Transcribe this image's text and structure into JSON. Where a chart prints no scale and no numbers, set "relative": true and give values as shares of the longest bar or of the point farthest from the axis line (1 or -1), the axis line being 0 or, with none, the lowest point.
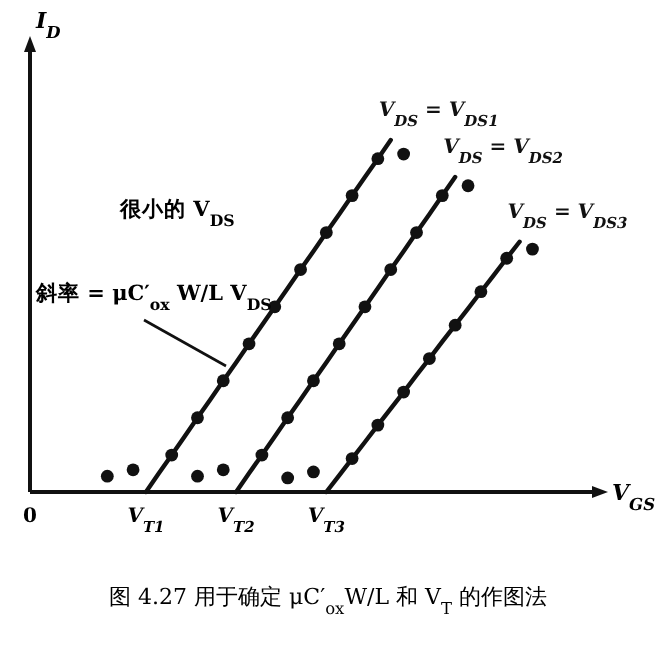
{
  "chart_data": {
    "type": "line",
    "relative": true,
    "xlabel": "V$_{GS}$",
    "ylabel": "I$_{D}$",
    "categories": [
      "0",
      null,
      null,
      null,
      null,
      null,
      null,
      null,
      null,
      "V$_{T1}$",
      null,
      null,
      null,
      null,
      null,
      null,
      "V$_{T2}$",
      null,
      null,
      null,
      null,
      null,
      null,
      "V$_{T3}$",
      null,
      null,
      null,
      null,
      null,
      null,
      null,
      null,
      null,
      null,
      null,
      null,
      null,
      null,
      null,
      null,
      null,
      null,
      null,
      null
    ],
    "series": [
      {
        "type": "line",
        "name": "V$_{DS}$ = V$_{DS1}$",
        "color": "#111111",
        "marker": "none",
        "values": [
          null,
          null,
          null,
          null,
          null,
          null,
          null,
          null,
          null,
          0,
          0.053,
          0.105,
          0.158,
          0.211,
          0.263,
          0.316,
          0.368,
          0.421,
          0.474,
          0.526,
          0.579,
          0.632,
          0.684,
          0.737,
          0.789,
          0.842,
          0.895,
          0.947,
          1,
          null,
          null,
          null,
          null,
          null,
          null,
          null,
          null,
          null,
          null,
          null,
          null,
          null,
          null,
          null
        ]
      },
      {
        "type": "line",
        "name": "V$_{DS}$ = V$_{DS2}$",
        "color": "#111111",
        "marker": "none",
        "values": [
          null,
          null,
          null,
          null,
          null,
          null,
          null,
          null,
          null,
          null,
          null,
          null,
          null,
          null,
          null,
          null,
          0,
          0.053,
          0.105,
          0.158,
          0.211,
          0.263,
          0.316,
          0.368,
          0.421,
          0.474,
          0.526,
          0.579,
          0.632,
          0.684,
          0.737,
          0.789,
          0.842,
          0.895,
          null,
          null,
          null,
          null,
          null,
          null,
          null,
          null,
          null,
          null
        ]
      },
      {
        "type": "line",
        "name": "V$_{DS}$ = V$_{DS3}$",
        "color": "#111111",
        "marker": "none",
        "values": [
          null,
          null,
          null,
          null,
          null,
          null,
          null,
          null,
          null,
          null,
          null,
          null,
          null,
          null,
          null,
          null,
          null,
          null,
          null,
          null,
          null,
          null,
          null,
          0,
          0.047,
          0.095,
          0.142,
          0.19,
          0.237,
          0.284,
          0.332,
          0.379,
          0.427,
          0.474,
          0.521,
          0.569,
          0.616,
          0.664,
          0.711,
          null,
          null,
          null,
          null,
          null
        ]
      },
      {
        "type": "scatter",
        "color": "#111111",
        "marker": "circle",
        "values": [
          null,
          null,
          null,
          null,
          null,
          null,
          0.045,
          null,
          0.063,
          null,
          null,
          0.105,
          null,
          0.211,
          null,
          0.316,
          null,
          0.421,
          null,
          0.526,
          null,
          0.632,
          null,
          0.737,
          null,
          0.842,
          null,
          0.947,
          null,
          0.96,
          null,
          null,
          null,
          null,
          null,
          null,
          null,
          null,
          null,
          null,
          null,
          null,
          null,
          null
        ]
      },
      {
        "type": "scatter",
        "color": "#111111",
        "marker": "circle",
        "values": [
          null,
          null,
          null,
          null,
          null,
          null,
          null,
          null,
          null,
          null,
          null,
          null,
          null,
          0.045,
          null,
          0.063,
          null,
          null,
          0.105,
          null,
          0.211,
          null,
          0.316,
          null,
          0.421,
          null,
          0.526,
          null,
          0.632,
          null,
          0.737,
          null,
          0.842,
          null,
          0.87,
          null,
          null,
          null,
          null,
          null,
          null,
          null,
          null,
          null
        ]
      },
      {
        "type": "scatter",
        "color": "#111111",
        "marker": "circle",
        "values": [
          null,
          null,
          null,
          null,
          null,
          null,
          null,
          null,
          null,
          null,
          null,
          null,
          null,
          null,
          null,
          null,
          null,
          null,
          null,
          null,
          0.04,
          null,
          0.057,
          null,
          null,
          0.095,
          null,
          0.19,
          null,
          0.284,
          null,
          0.379,
          null,
          0.474,
          null,
          0.569,
          null,
          0.664,
          null,
          0.69,
          null,
          null,
          null,
          null
        ]
      }
    ],
    "annotations": [
      "很小的 V$_{DS}$",
      "斜率 = μC′$_{ox}$ W/L V$_{DS}$",
      "图 4.27  用于确定 μC′$_{ox}$W/L 和 V$_{T}$ 的作图法"
    ]
  }
}
